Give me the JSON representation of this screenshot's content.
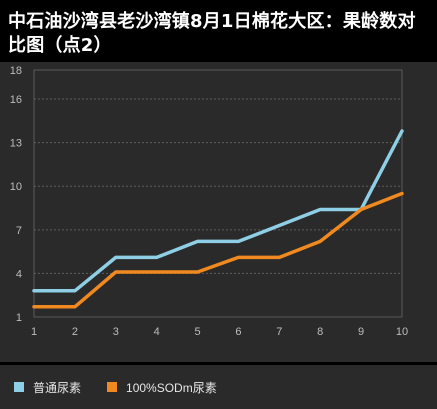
{
  "title": "中石油沙湾县老沙湾镇8月1日棉花大区：果龄数对比图（点2）",
  "chart_data": {
    "type": "line",
    "title": "中石油沙湾县老沙湾镇8月1日棉花大区：果龄数对比图（点2）",
    "x": [
      1,
      2,
      3,
      4,
      5,
      6,
      7,
      8,
      9,
      10
    ],
    "x_tick_labels": [
      "1",
      "2",
      "3",
      "4",
      "5",
      "6",
      "7",
      "8",
      "9",
      "10"
    ],
    "y_tick_labels": [
      "1",
      "4",
      "7",
      "10",
      "13",
      "16",
      "18"
    ],
    "y_ticks": [
      1,
      4,
      7,
      10,
      13,
      16,
      18
    ],
    "ylim": [
      1,
      18
    ],
    "grid": "horizontal-dashed",
    "legend_position": "bottom-left",
    "series": [
      {
        "name": "普通尿素",
        "color": "#8ecfe6",
        "values": [
          2.8,
          2.8,
          5.1,
          5.1,
          6.2,
          6.2,
          7.3,
          8.4,
          8.4,
          13.8
        ]
      },
      {
        "name": "100%SODm尿素",
        "color": "#f0891f",
        "values": [
          1.7,
          1.7,
          4.1,
          4.1,
          4.1,
          5.1,
          5.1,
          6.2,
          8.4,
          9.5
        ]
      }
    ]
  }
}
